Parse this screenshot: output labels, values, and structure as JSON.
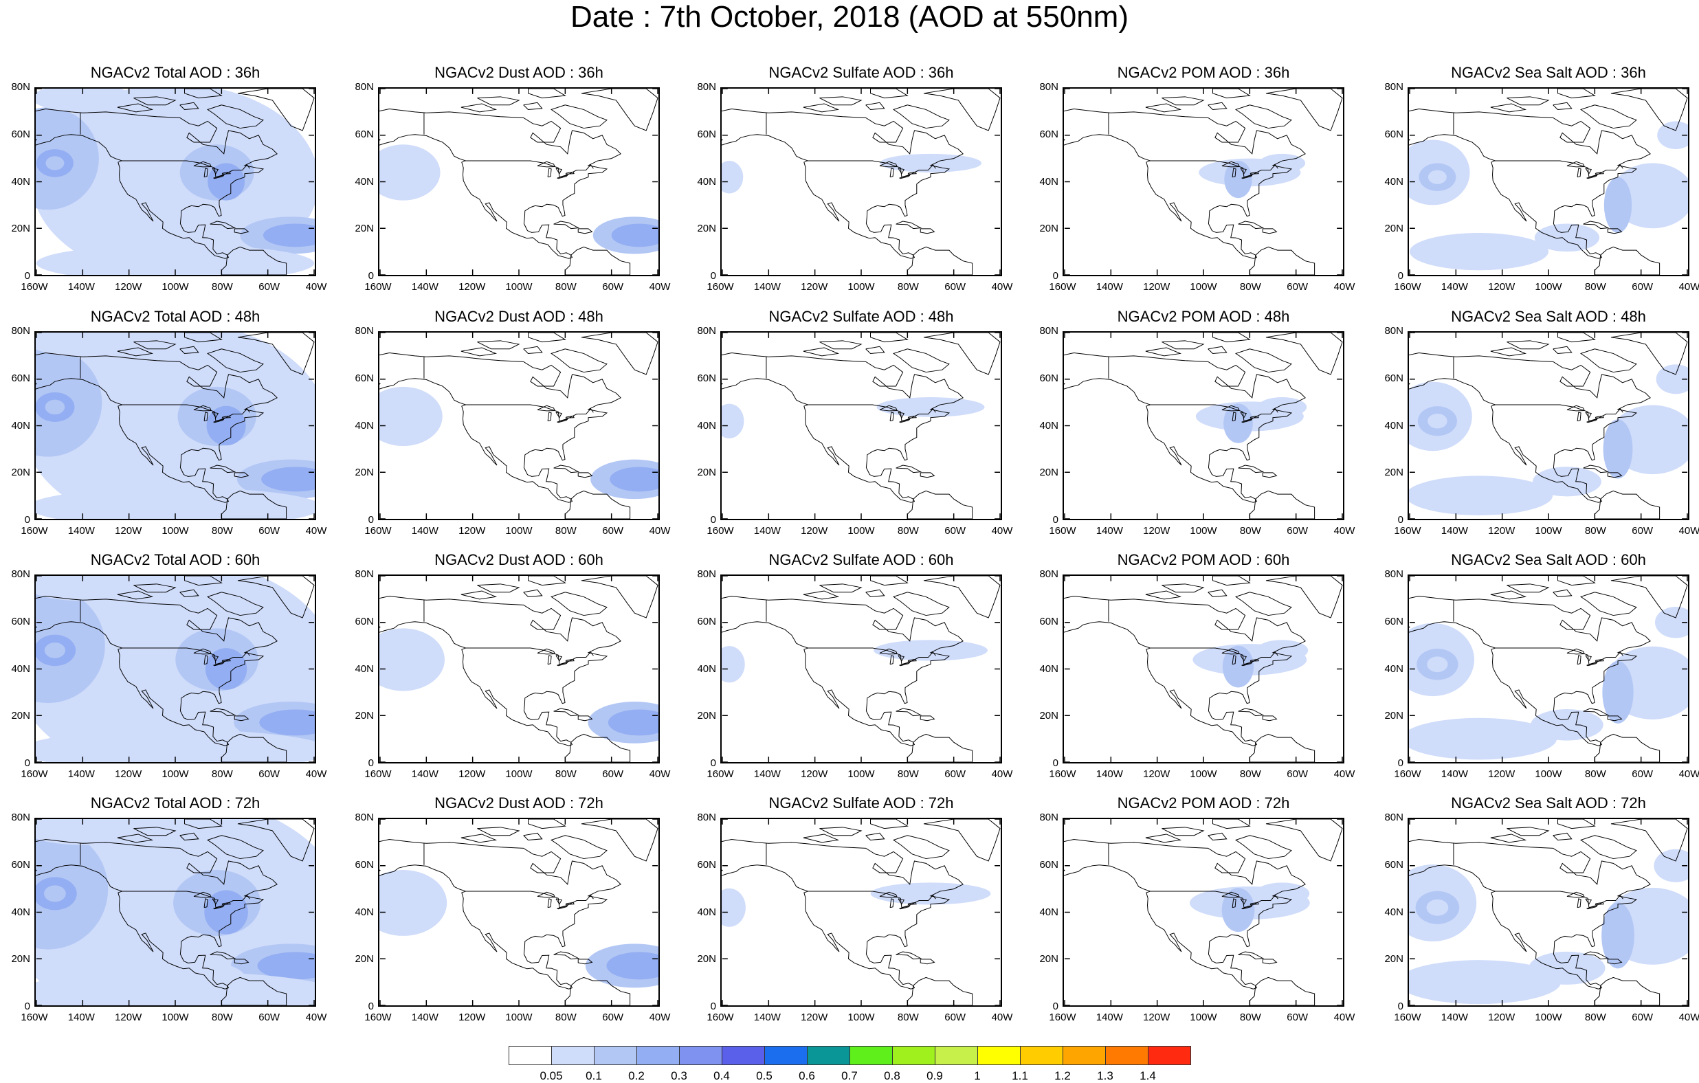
{
  "title": "Date : 7th October, 2018 (AOD at 550nm)",
  "map_axes": {
    "lat_ticks": [
      "0",
      "20N",
      "40N",
      "60N",
      "80N"
    ],
    "lon_ticks": [
      "160W",
      "140W",
      "120W",
      "100W",
      "80W",
      "60W",
      "40W"
    ]
  },
  "columns": [
    {
      "key": "total",
      "label": "NGACv2 Total AOD"
    },
    {
      "key": "dust",
      "label": "NGACv2 Dust AOD"
    },
    {
      "key": "sulfate",
      "label": "NGACv2 Sulfate AOD"
    },
    {
      "key": "pom",
      "label": "NGACv2 POM AOD"
    },
    {
      "key": "seasalt",
      "label": "NGACv2 Sea Salt AOD"
    }
  ],
  "panel_titles": [
    [
      "NGACv2 Total AOD : 36h",
      "NGACv2 Dust AOD : 36h",
      "NGACv2 Sulfate AOD : 36h",
      "NGACv2 POM AOD : 36h",
      "NGACv2 Sea Salt AOD : 36h"
    ],
    [
      "NGACv2 Total AOD : 48h",
      "NGACv2 Dust AOD : 48h",
      "NGACv2 Sulfate AOD : 48h",
      "NGACv2 POM AOD : 48h",
      "NGACv2 Sea Salt AOD : 48h"
    ],
    [
      "NGACv2 Total AOD : 60h",
      "NGACv2 Dust AOD : 60h",
      "NGACv2 Sulfate AOD : 60h",
      "NGACv2 POM AOD : 60h",
      "NGACv2 Sea Salt AOD : 60h"
    ],
    [
      "NGACv2 Total AOD : 72h",
      "NGACv2 Dust AOD : 72h",
      "NGACv2 Sulfate AOD : 72h",
      "NGACv2 POM AOD : 72h",
      "NGACv2 Sea Salt  AOD : 72h"
    ]
  ],
  "forecast_hours": [
    "36h",
    "48h",
    "60h",
    "72h"
  ],
  "colorbar": {
    "labels": [
      "0.05",
      "0.1",
      "0.2",
      "0.3",
      "0.4",
      "0.5",
      "0.6",
      "0.7",
      "0.8",
      "0.9",
      "1",
      "1.1",
      "1.2",
      "1.3",
      "1.4"
    ],
    "colors": [
      "#ffffff",
      "#cfdcfa",
      "#b3c7f5",
      "#93aef2",
      "#7f92f0",
      "#5b60ea",
      "#1b6fef",
      "#0a9696",
      "#5fef1b",
      "#9ff01c",
      "#c8f04a",
      "#ffff00",
      "#ffcc00",
      "#ffa500",
      "#ff7a00",
      "#ff2a10"
    ]
  }
}
